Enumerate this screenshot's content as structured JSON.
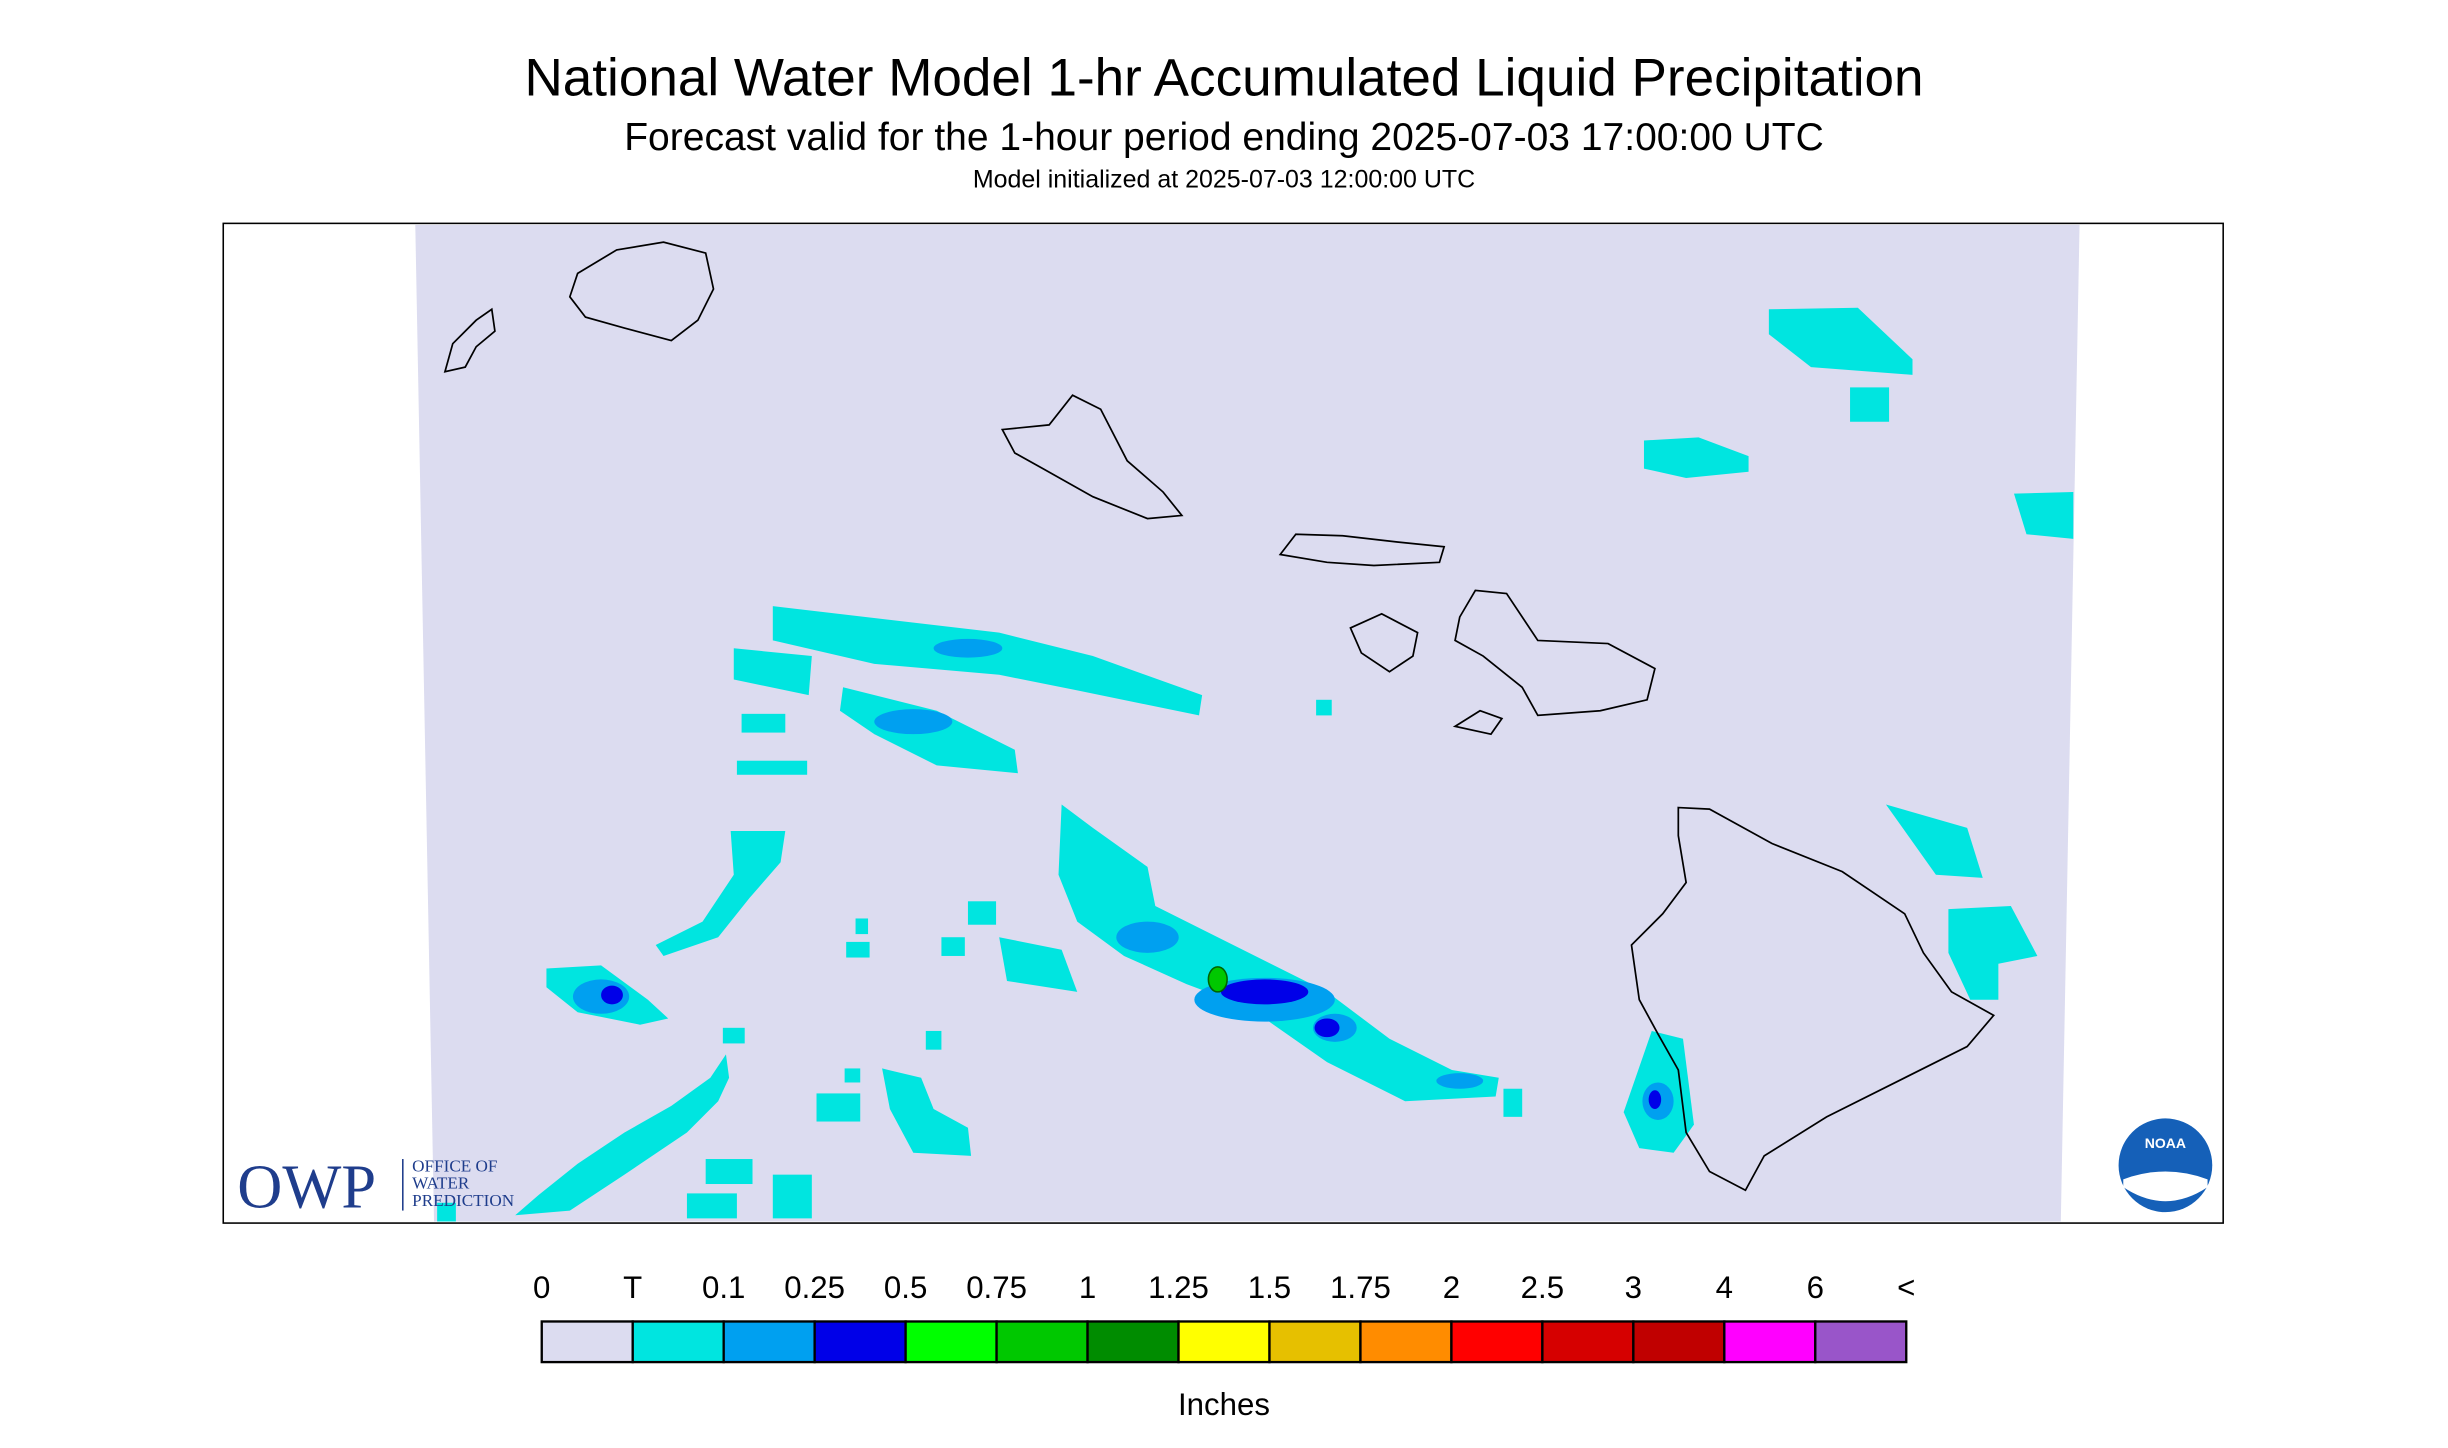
{
  "header": {
    "title": "National Water Model 1-hr Accumulated Liquid Precipitation",
    "subtitle": "Forecast valid for the 1-hour period ending 2025-07-03 17:00:00 UTC",
    "init": "Model initialized at 2025-07-03 12:00:00 UTC"
  },
  "logo": {
    "owp": "OWP",
    "lines": [
      "OFFICE OF",
      "WATER",
      "PREDICTION"
    ],
    "noaa": "NOAA"
  },
  "legend": {
    "labels": [
      "0",
      "T",
      "0.1",
      "0.25",
      "0.5",
      "0.75",
      "1",
      "1.25",
      "1.5",
      "1.75",
      "2",
      "2.5",
      "3",
      "4",
      "6",
      "<"
    ],
    "colors": [
      "#dcdcf0",
      "#00e5e0",
      "#00a0f0",
      "#0000e8",
      "#00ff00",
      "#00c800",
      "#008c00",
      "#ffff00",
      "#e6c000",
      "#ff8c00",
      "#ff0000",
      "#d60000",
      "#c00000",
      "#ff00ff",
      "#9955c9"
    ],
    "units": "Inches"
  }
}
